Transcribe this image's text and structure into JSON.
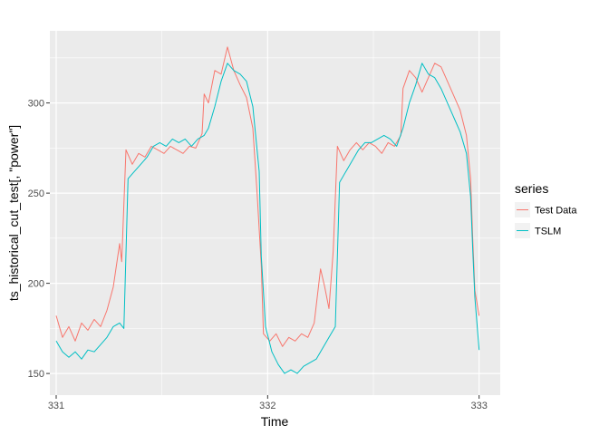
{
  "chart_data": {
    "type": "line",
    "title": "",
    "xlabel": "Time",
    "ylabel": "ts_historical_cut_test[, \"power\"]",
    "xlim": [
      330.97,
      333.1
    ],
    "ylim": [
      138,
      340
    ],
    "x_ticks": [
      331,
      332,
      333
    ],
    "x_tick_labels": [
      "331",
      "332",
      "333"
    ],
    "y_ticks": [
      150,
      200,
      250,
      300
    ],
    "y_tick_labels": [
      "150",
      "200",
      "250",
      "300"
    ],
    "grid": true,
    "legend": {
      "title": "series",
      "placement": "right"
    },
    "series": [
      {
        "name": "Test Data",
        "color": "#F8766D",
        "points": [
          [
            331.0,
            182
          ],
          [
            331.03,
            170
          ],
          [
            331.06,
            176
          ],
          [
            331.09,
            168
          ],
          [
            331.12,
            178
          ],
          [
            331.15,
            174
          ],
          [
            331.18,
            180
          ],
          [
            331.21,
            176
          ],
          [
            331.24,
            185
          ],
          [
            331.27,
            198
          ],
          [
            331.3,
            222
          ],
          [
            331.31,
            212
          ],
          [
            331.33,
            274
          ],
          [
            331.36,
            266
          ],
          [
            331.39,
            272
          ],
          [
            331.42,
            270
          ],
          [
            331.45,
            276
          ],
          [
            331.48,
            274
          ],
          [
            331.51,
            272
          ],
          [
            331.54,
            276
          ],
          [
            331.57,
            274
          ],
          [
            331.6,
            272
          ],
          [
            331.63,
            276
          ],
          [
            331.66,
            275
          ],
          [
            331.69,
            283
          ],
          [
            331.7,
            305
          ],
          [
            331.72,
            300
          ],
          [
            331.75,
            318
          ],
          [
            331.78,
            316
          ],
          [
            331.81,
            331
          ],
          [
            331.84,
            318
          ],
          [
            331.87,
            310
          ],
          [
            331.9,
            303
          ],
          [
            331.93,
            286
          ],
          [
            331.95,
            250
          ],
          [
            331.97,
            210
          ],
          [
            331.98,
            172
          ],
          [
            332.01,
            168
          ],
          [
            332.04,
            172
          ],
          [
            332.07,
            165
          ],
          [
            332.1,
            170
          ],
          [
            332.13,
            168
          ],
          [
            332.16,
            172
          ],
          [
            332.19,
            170
          ],
          [
            332.22,
            178
          ],
          [
            332.25,
            208
          ],
          [
            332.27,
            198
          ],
          [
            332.29,
            186
          ],
          [
            332.31,
            218
          ],
          [
            332.33,
            276
          ],
          [
            332.36,
            268
          ],
          [
            332.39,
            274
          ],
          [
            332.42,
            278
          ],
          [
            332.45,
            274
          ],
          [
            332.48,
            278
          ],
          [
            332.51,
            276
          ],
          [
            332.54,
            272
          ],
          [
            332.57,
            278
          ],
          [
            332.6,
            276
          ],
          [
            332.63,
            282
          ],
          [
            332.64,
            308
          ],
          [
            332.67,
            318
          ],
          [
            332.7,
            314
          ],
          [
            332.73,
            306
          ],
          [
            332.76,
            314
          ],
          [
            332.79,
            322
          ],
          [
            332.82,
            320
          ],
          [
            332.85,
            312
          ],
          [
            332.88,
            304
          ],
          [
            332.91,
            296
          ],
          [
            332.94,
            282
          ],
          [
            332.96,
            258
          ],
          [
            332.97,
            224
          ],
          [
            332.98,
            196
          ],
          [
            333.0,
            182
          ]
        ]
      },
      {
        "name": "TSLM",
        "color": "#00BFC4",
        "points": [
          [
            331.0,
            168
          ],
          [
            331.03,
            162
          ],
          [
            331.06,
            159
          ],
          [
            331.09,
            162
          ],
          [
            331.12,
            158
          ],
          [
            331.15,
            163
          ],
          [
            331.18,
            162
          ],
          [
            331.21,
            166
          ],
          [
            331.24,
            170
          ],
          [
            331.27,
            176
          ],
          [
            331.3,
            178
          ],
          [
            331.32,
            175
          ],
          [
            331.34,
            258
          ],
          [
            331.37,
            262
          ],
          [
            331.4,
            266
          ],
          [
            331.43,
            270
          ],
          [
            331.46,
            276
          ],
          [
            331.49,
            278
          ],
          [
            331.52,
            276
          ],
          [
            331.55,
            280
          ],
          [
            331.58,
            278
          ],
          [
            331.61,
            280
          ],
          [
            331.64,
            276
          ],
          [
            331.67,
            280
          ],
          [
            331.7,
            282
          ],
          [
            331.72,
            286
          ],
          [
            331.75,
            298
          ],
          [
            331.78,
            312
          ],
          [
            331.81,
            322
          ],
          [
            331.84,
            318
          ],
          [
            331.87,
            316
          ],
          [
            331.9,
            312
          ],
          [
            331.93,
            298
          ],
          [
            331.96,
            262
          ],
          [
            331.97,
            215
          ],
          [
            331.99,
            176
          ],
          [
            332.02,
            162
          ],
          [
            332.05,
            155
          ],
          [
            332.08,
            150
          ],
          [
            332.11,
            152
          ],
          [
            332.14,
            150
          ],
          [
            332.17,
            154
          ],
          [
            332.2,
            156
          ],
          [
            332.23,
            158
          ],
          [
            332.26,
            164
          ],
          [
            332.29,
            170
          ],
          [
            332.32,
            176
          ],
          [
            332.34,
            256
          ],
          [
            332.37,
            262
          ],
          [
            332.4,
            268
          ],
          [
            332.43,
            274
          ],
          [
            332.46,
            278
          ],
          [
            332.49,
            278
          ],
          [
            332.52,
            280
          ],
          [
            332.55,
            282
          ],
          [
            332.58,
            280
          ],
          [
            332.61,
            276
          ],
          [
            332.64,
            286
          ],
          [
            332.67,
            300
          ],
          [
            332.7,
            310
          ],
          [
            332.73,
            322
          ],
          [
            332.76,
            316
          ],
          [
            332.79,
            314
          ],
          [
            332.82,
            308
          ],
          [
            332.85,
            300
          ],
          [
            332.88,
            292
          ],
          [
            332.91,
            284
          ],
          [
            332.94,
            272
          ],
          [
            332.96,
            248
          ],
          [
            332.97,
            218
          ],
          [
            332.98,
            192
          ],
          [
            333.0,
            163
          ]
        ]
      }
    ]
  }
}
